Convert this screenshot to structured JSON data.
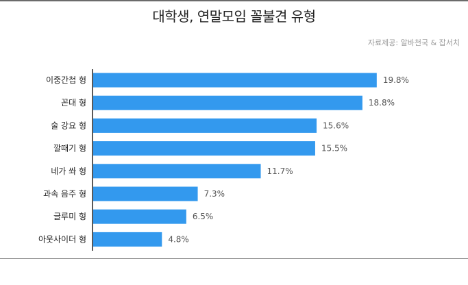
{
  "header": {
    "title": "대학생, 연말모임 꼴불견 유형",
    "source": "자료제공: 알바천국 & 잡서치"
  },
  "colors": {
    "bar": "#3399ee",
    "axis": "#222222"
  },
  "chart_data": {
    "type": "bar",
    "orientation": "horizontal",
    "title": "대학생, 연말모임 꼴불견 유형",
    "categories": [
      "이중간첩 형",
      "꼰대 형",
      "술 강요 형",
      "깔때기 형",
      "네가 쏴 형",
      "과속 음주 형",
      "글루미 형",
      "아웃사이더 형"
    ],
    "values": [
      19.8,
      18.8,
      15.6,
      15.5,
      11.7,
      7.3,
      6.5,
      4.8
    ],
    "value_labels": [
      "19.8%",
      "18.8%",
      "15.6%",
      "15.5%",
      "11.7%",
      "7.3%",
      "6.5%",
      "4.8%"
    ],
    "xlim": [
      0,
      25
    ],
    "grid": false,
    "legend": "none"
  }
}
